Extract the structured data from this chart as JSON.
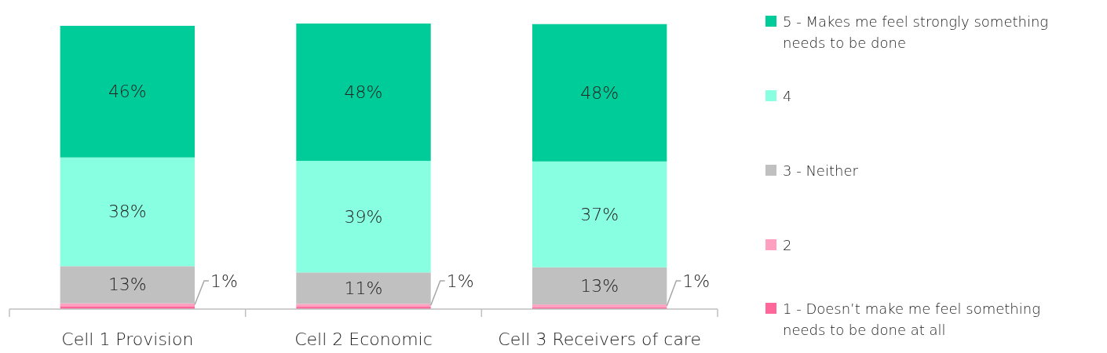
{
  "chart_data": {
    "type": "bar",
    "stacked": true,
    "categories": [
      "Cell 1 Provision",
      "Cell 2 Economic",
      "Cell 3 Receivers of care"
    ],
    "legend": "right",
    "series": [
      {
        "name": "1 - Doesn’t make me feel something needs to be done at all",
        "color": "#ff6699",
        "values": [
          1,
          0.8,
          0.6
        ],
        "value_labels": [
          null,
          null,
          null
        ]
      },
      {
        "name": "2",
        "color": "#ffa0c0",
        "values": [
          1,
          1,
          1
        ],
        "value_labels": [
          "1%",
          "1%",
          "1%"
        ]
      },
      {
        "name": "3 - Neither",
        "color": "#c0c0c0",
        "values": [
          13,
          11,
          13
        ],
        "value_labels": [
          "13%",
          "11%",
          "13%"
        ]
      },
      {
        "name": "4",
        "color": "#88ffe0",
        "values": [
          38,
          39,
          37
        ],
        "value_labels": [
          "38%",
          "39%",
          "37%"
        ]
      },
      {
        "name": "5 - Makes me feel strongly something needs to be done",
        "color": "#00cc99",
        "values": [
          46,
          48,
          48
        ],
        "value_labels": [
          "46%",
          "48%",
          "48%"
        ]
      }
    ]
  }
}
